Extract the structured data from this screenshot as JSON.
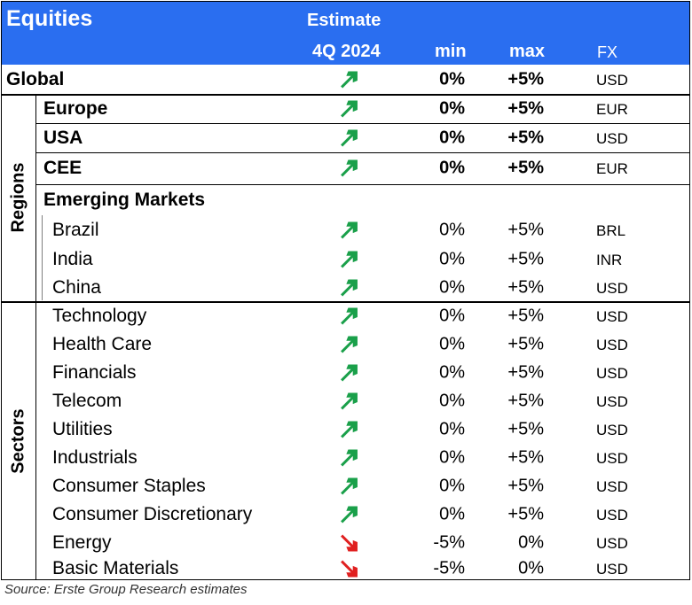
{
  "header": {
    "title": "Equities",
    "estimate_label": "Estimate",
    "period_label": "4Q 2024",
    "min_label": "min",
    "max_label": "max",
    "fx_label": "FX"
  },
  "colors": {
    "header_bg": "#2a6ef0",
    "arrow_up": "#1aa04a",
    "arrow_down": "#e02020"
  },
  "side_labels": {
    "regions": "Regions",
    "sectors": "Sectors"
  },
  "rows": [
    {
      "label": "Global",
      "direction": "up",
      "min": "0%",
      "max": "+5%",
      "fx": "USD"
    },
    {
      "label": "Europe",
      "direction": "up",
      "min": "0%",
      "max": "+5%",
      "fx": "EUR"
    },
    {
      "label": "USA",
      "direction": "up",
      "min": "0%",
      "max": "+5%",
      "fx": "USD"
    },
    {
      "label": "CEE",
      "direction": "up",
      "min": "0%",
      "max": "+5%",
      "fx": "EUR"
    },
    {
      "label": "Emerging Markets"
    },
    {
      "label": "Brazil",
      "direction": "up",
      "min": "0%",
      "max": "+5%",
      "fx": "BRL"
    },
    {
      "label": "India",
      "direction": "up",
      "min": "0%",
      "max": "+5%",
      "fx": "INR"
    },
    {
      "label": "China",
      "direction": "up",
      "min": "0%",
      "max": "+5%",
      "fx": "USD"
    },
    {
      "label": "Technology",
      "direction": "up",
      "min": "0%",
      "max": "+5%",
      "fx": "USD"
    },
    {
      "label": "Health Care",
      "direction": "up",
      "min": "0%",
      "max": "+5%",
      "fx": "USD"
    },
    {
      "label": "Financials",
      "direction": "up",
      "min": "0%",
      "max": "+5%",
      "fx": "USD"
    },
    {
      "label": "Telecom",
      "direction": "up",
      "min": "0%",
      "max": "+5%",
      "fx": "USD"
    },
    {
      "label": "Utilities",
      "direction": "up",
      "min": "0%",
      "max": "+5%",
      "fx": "USD"
    },
    {
      "label": "Industrials",
      "direction": "up",
      "min": "0%",
      "max": "+5%",
      "fx": "USD"
    },
    {
      "label": "Consumer Staples",
      "direction": "up",
      "min": "0%",
      "max": "+5%",
      "fx": "USD"
    },
    {
      "label": "Consumer Discretionary",
      "direction": "up",
      "min": "0%",
      "max": "+5%",
      "fx": "USD"
    },
    {
      "label": "Energy",
      "direction": "down",
      "min": "-5%",
      "max": "0%",
      "fx": "USD"
    },
    {
      "label": "Basic Materials",
      "direction": "down",
      "min": "-5%",
      "max": "0%",
      "fx": "USD"
    }
  ],
  "source": "Source: Erste Group Research estimates"
}
